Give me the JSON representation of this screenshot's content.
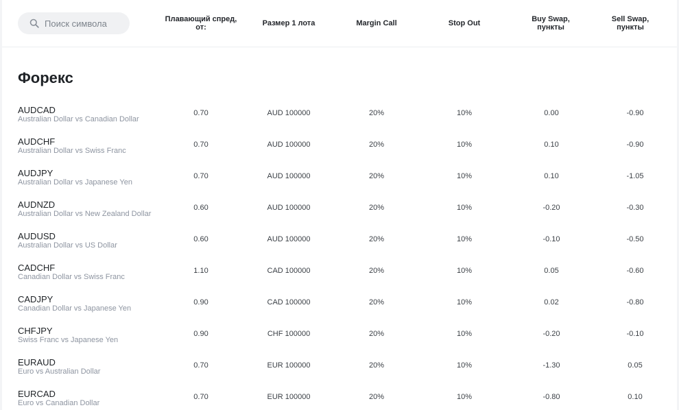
{
  "search": {
    "placeholder": "Поиск символа"
  },
  "columns": {
    "spread": "Плавающий спред, от:",
    "lot": "Размер 1 лота",
    "margin_call": "Margin Call",
    "stop_out": "Stop Out",
    "buy_swap": "Buy Swap, пункты",
    "sell_swap": "Sell Swap, пункты"
  },
  "section": {
    "title": "Форекс"
  },
  "rows": [
    {
      "symbol": "AUDCAD",
      "desc": "Australian Dollar vs Canadian Dollar",
      "spread": "0.70",
      "lot": "AUD 100000",
      "margin_call": "20%",
      "stop_out": "10%",
      "buy_swap": "0.00",
      "sell_swap": "-0.90"
    },
    {
      "symbol": "AUDCHF",
      "desc": "Australian Dollar vs Swiss Franc",
      "spread": "0.70",
      "lot": "AUD 100000",
      "margin_call": "20%",
      "stop_out": "10%",
      "buy_swap": "0.10",
      "sell_swap": "-0.90"
    },
    {
      "symbol": "AUDJPY",
      "desc": "Australian Dollar vs Japanese Yen",
      "spread": "0.70",
      "lot": "AUD 100000",
      "margin_call": "20%",
      "stop_out": "10%",
      "buy_swap": "0.10",
      "sell_swap": "-1.05"
    },
    {
      "symbol": "AUDNZD",
      "desc": "Australian Dollar vs New Zealand Dollar",
      "spread": "0.60",
      "lot": "AUD 100000",
      "margin_call": "20%",
      "stop_out": "10%",
      "buy_swap": "-0.20",
      "sell_swap": "-0.30"
    },
    {
      "symbol": "AUDUSD",
      "desc": "Australian Dollar vs US Dollar",
      "spread": "0.60",
      "lot": "AUD 100000",
      "margin_call": "20%",
      "stop_out": "10%",
      "buy_swap": "-0.10",
      "sell_swap": "-0.50"
    },
    {
      "symbol": "CADCHF",
      "desc": "Canadian Dollar vs Swiss Franc",
      "spread": "1.10",
      "lot": "CAD 100000",
      "margin_call": "20%",
      "stop_out": "10%",
      "buy_swap": "0.05",
      "sell_swap": "-0.60"
    },
    {
      "symbol": "CADJPY",
      "desc": "Canadian Dollar vs Japanese Yen",
      "spread": "0.90",
      "lot": "CAD 100000",
      "margin_call": "20%",
      "stop_out": "10%",
      "buy_swap": "0.02",
      "sell_swap": "-0.80"
    },
    {
      "symbol": "CHFJPY",
      "desc": "Swiss Franc vs Japanese Yen",
      "spread": "0.90",
      "lot": "CHF 100000",
      "margin_call": "20%",
      "stop_out": "10%",
      "buy_swap": "-0.20",
      "sell_swap": "-0.10"
    },
    {
      "symbol": "EURAUD",
      "desc": "Euro vs Australian Dollar",
      "spread": "0.70",
      "lot": "EUR 100000",
      "margin_call": "20%",
      "stop_out": "10%",
      "buy_swap": "-1.30",
      "sell_swap": "0.05"
    },
    {
      "symbol": "EURCAD",
      "desc": "Euro vs Canadian Dollar",
      "spread": "0.70",
      "lot": "EUR 100000",
      "margin_call": "20%",
      "stop_out": "10%",
      "buy_swap": "-0.80",
      "sell_swap": "0.10"
    }
  ]
}
